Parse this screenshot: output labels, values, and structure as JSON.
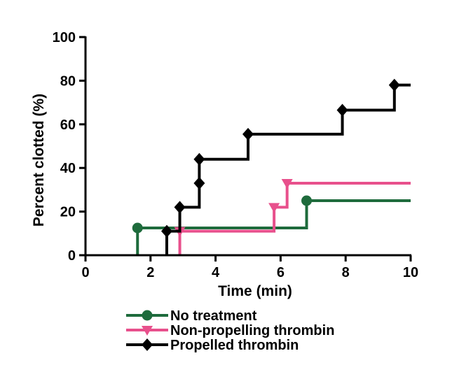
{
  "chart_data": {
    "type": "line",
    "step": true,
    "xlabel": "Time (min)",
    "ylabel": "Percent clotted (%)",
    "xlim": [
      0,
      10
    ],
    "ylim": [
      0,
      100
    ],
    "xticks": [
      0,
      2,
      4,
      6,
      8,
      10
    ],
    "yticks": [
      0,
      20,
      40,
      60,
      80,
      100
    ],
    "grid": false,
    "legend_position": "bottom",
    "series": [
      {
        "name": "No treatment",
        "color": "#1e6b3c",
        "marker": "circle",
        "points": [
          [
            1.6,
            12.5
          ],
          [
            6.8,
            25
          ]
        ],
        "end_x": 10
      },
      {
        "name": "Non-propelling thrombin",
        "color": "#e8508c",
        "marker": "triangle-down",
        "points": [
          [
            2.9,
            11
          ],
          [
            5.8,
            22
          ],
          [
            6.2,
            33
          ]
        ],
        "end_x": 10
      },
      {
        "name": "Propelled thrombin",
        "color": "#000000",
        "marker": "diamond",
        "points": [
          [
            2.5,
            11
          ],
          [
            2.9,
            22
          ],
          [
            3.5,
            33
          ],
          [
            3.5,
            44
          ],
          [
            5,
            55.5
          ],
          [
            7.9,
            66.5
          ],
          [
            9.5,
            78
          ]
        ],
        "end_x": 10
      }
    ]
  }
}
